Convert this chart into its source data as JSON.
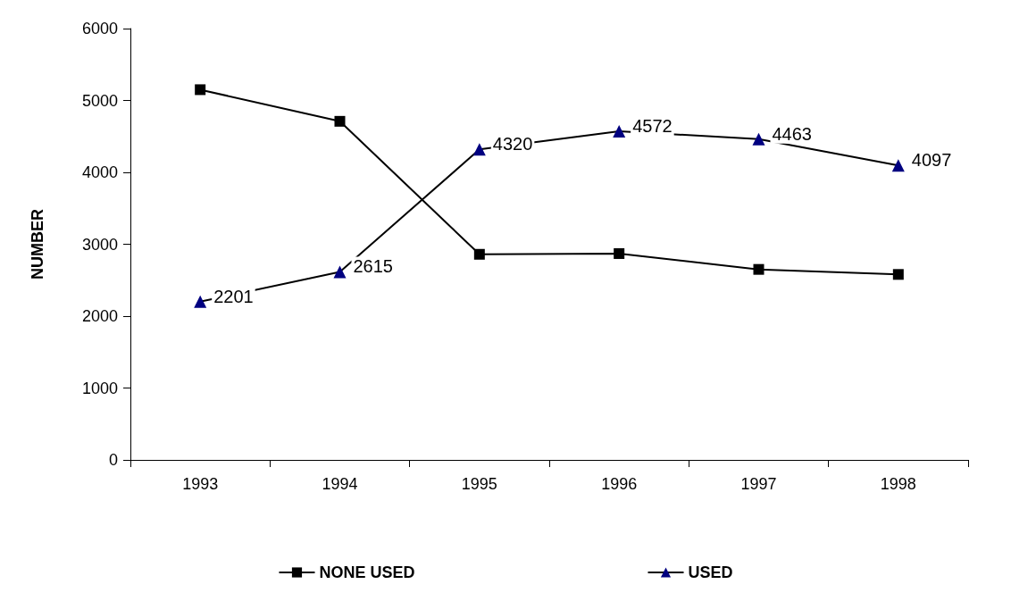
{
  "chart_data": {
    "type": "line",
    "ylabel": "NUMBER",
    "categories": [
      "1993",
      "1994",
      "1995",
      "1996",
      "1997",
      "1998"
    ],
    "series": [
      {
        "name": "NONE USED",
        "color": "#000000",
        "marker": "square",
        "values": [
          5150,
          4710,
          2860,
          2870,
          2650,
          2580
        ]
      },
      {
        "name": "USED",
        "color": "#000080",
        "marker": "triangle",
        "values": [
          2201,
          2615,
          4320,
          4572,
          4463,
          4097
        ],
        "value_labels": [
          "2201",
          "2615",
          "4320",
          "4572",
          "4463",
          "4097"
        ]
      }
    ],
    "ylim": [
      0,
      6000
    ],
    "yticks": [
      0,
      1000,
      2000,
      3000,
      4000,
      5000,
      6000
    ],
    "grid": false,
    "legend": "bottom"
  }
}
